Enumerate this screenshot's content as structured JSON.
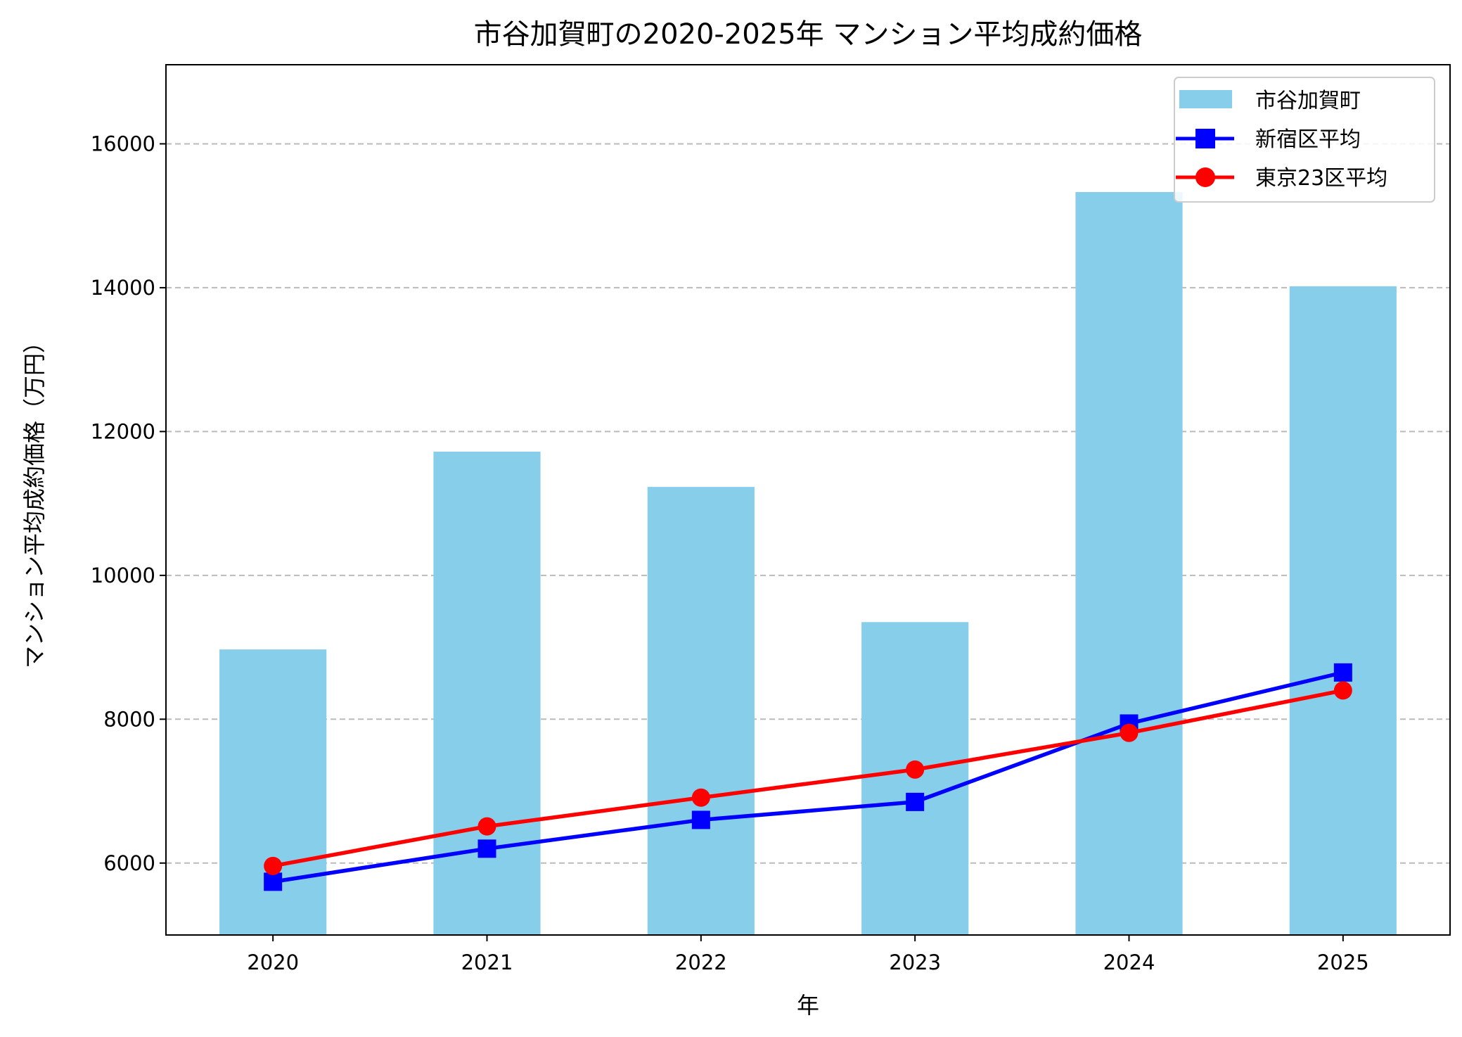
{
  "chart_data": {
    "type": "bar+line",
    "title": "市谷加賀町の2020-2025年 マンション平均成約価格",
    "xlabel": "年",
    "ylabel": "マンション平均成約価格（万円）",
    "categories": [
      "2020",
      "2021",
      "2022",
      "2023",
      "2024",
      "2025"
    ],
    "ylim": [
      5000,
      17100
    ],
    "yticks": [
      "6000",
      "8000",
      "10000",
      "12000",
      "14000",
      "16000"
    ],
    "grid": "y dashed",
    "legend_position": "top-right",
    "series": [
      {
        "name": "市谷加賀町",
        "kind": "bar",
        "color": "#87ceeb",
        "values": [
          8970,
          11720,
          11230,
          9350,
          15330,
          14020
        ]
      },
      {
        "name": "新宿区平均",
        "kind": "line",
        "marker": "square",
        "color": "#0000ff",
        "values": [
          5740,
          6200,
          6600,
          6850,
          7940,
          8650
        ]
      },
      {
        "name": "東京23区平均",
        "kind": "line",
        "marker": "circle",
        "color": "#ff0000",
        "values": [
          5960,
          6510,
          6910,
          7300,
          7810,
          8400
        ]
      }
    ]
  }
}
